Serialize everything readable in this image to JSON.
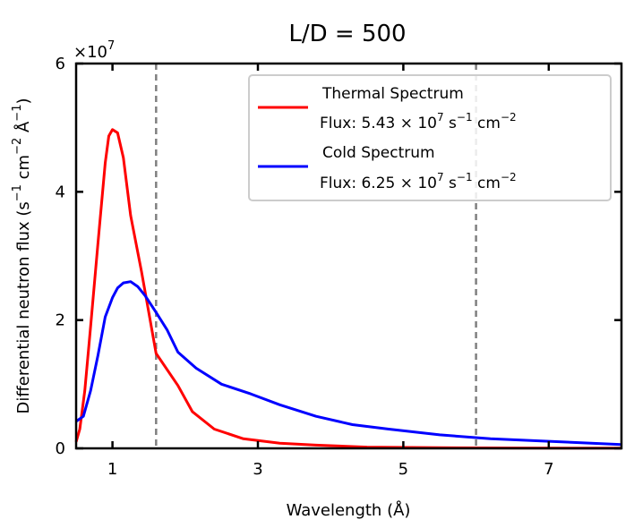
{
  "chart_data": {
    "type": "line",
    "title": "L/D = 500",
    "xlabel": "Wavelength (Å)",
    "ylabel_main": "Differential neutron flux (s",
    "ylabel_sup1": "−1",
    "ylabel_mid1": " cm",
    "ylabel_sup2": "−2",
    "ylabel_mid2": " Å",
    "ylabel_sup3": "−1",
    "ylabel_end": ")",
    "multiplier_base": "×10",
    "multiplier_exp": "7",
    "xlim": [
      0.5,
      8.0
    ],
    "ylim": [
      0,
      6
    ],
    "xticks": [
      1,
      3,
      5,
      7
    ],
    "xtick_labels": [
      "1",
      "3",
      "5",
      "7"
    ],
    "yticks": [
      0,
      2,
      4,
      6
    ],
    "ytick_labels": [
      "0",
      "2",
      "4",
      "6"
    ],
    "vlines": [
      1.6,
      6.0
    ],
    "series": [
      {
        "name": "Thermal Spectrum",
        "flux_label": "Flux: 5.43 × 10",
        "flux_exp": "7",
        "flux_unit1": " s",
        "flux_unit1_exp": "−1",
        "flux_unit2": " cm",
        "flux_unit2_exp": "−2",
        "color": "#ff0000",
        "x": [
          0.5,
          0.55,
          0.62,
          0.7,
          0.8,
          0.9,
          0.95,
          1.0,
          1.07,
          1.15,
          1.25,
          1.4,
          1.6,
          1.9,
          2.1,
          2.4,
          2.8,
          3.3,
          3.8,
          4.5,
          5.5,
          6.5,
          7.5,
          8.0
        ],
        "y": [
          0.1,
          0.3,
          0.9,
          1.9,
          3.2,
          4.45,
          4.87,
          4.97,
          4.92,
          4.53,
          3.63,
          2.75,
          1.48,
          0.98,
          0.57,
          0.3,
          0.15,
          0.08,
          0.05,
          0.02,
          0.01,
          0.005,
          0.003,
          0.003
        ]
      },
      {
        "name": "Cold Spectrum",
        "flux_label": "Flux: 6.25 × 10",
        "flux_exp": "7",
        "flux_unit1": " s",
        "flux_unit1_exp": "−1",
        "flux_unit2": " cm",
        "flux_unit2_exp": "−2",
        "color": "#0000ff",
        "x": [
          0.5,
          0.6,
          0.7,
          0.8,
          0.9,
          1.0,
          1.07,
          1.15,
          1.25,
          1.35,
          1.45,
          1.6,
          1.75,
          1.9,
          2.15,
          2.5,
          2.9,
          3.3,
          3.8,
          4.3,
          4.8,
          5.5,
          6.2,
          7.0,
          8.0
        ],
        "y": [
          0.42,
          0.5,
          0.9,
          1.45,
          2.05,
          2.35,
          2.5,
          2.58,
          2.6,
          2.52,
          2.38,
          2.12,
          1.85,
          1.5,
          1.25,
          1.0,
          0.85,
          0.68,
          0.5,
          0.37,
          0.3,
          0.21,
          0.15,
          0.11,
          0.06
        ]
      }
    ],
    "legend_position": "top-right"
  }
}
